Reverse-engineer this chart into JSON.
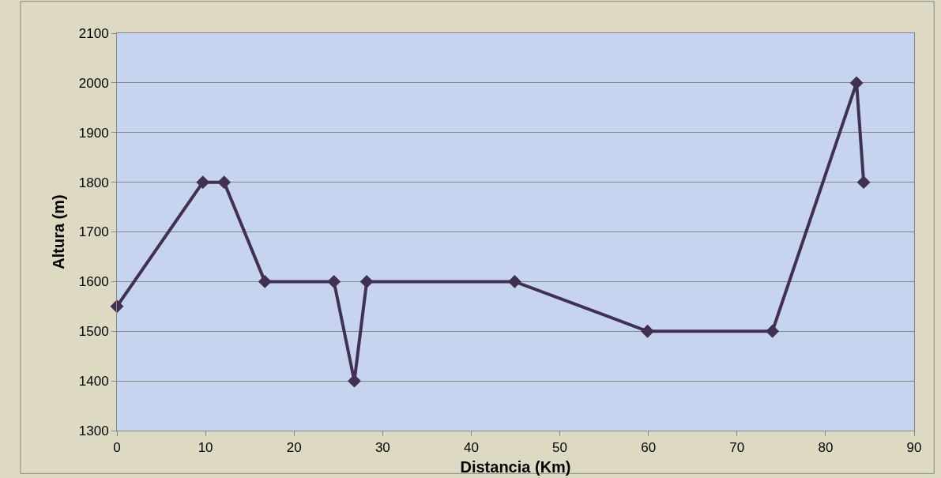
{
  "chart_data": {
    "type": "line",
    "xlabel": "Distancia (Km)",
    "ylabel": "Altura (m)",
    "x": [
      0,
      9.7,
      12.1,
      16.7,
      24.5,
      26.8,
      28.2,
      44.9,
      59.9,
      74.0,
      83.5,
      84.3
    ],
    "series": [
      {
        "color": "#403152",
        "values": [
          1550,
          1800,
          1800,
          1600,
          1600,
          1400,
          1600,
          1600,
          1500,
          1500,
          2000,
          1800
        ]
      }
    ],
    "xlim": [
      0,
      90
    ],
    "xticks": [
      0,
      10,
      20,
      30,
      40,
      50,
      60,
      70,
      80,
      90
    ],
    "ylim": [
      1300,
      2100
    ],
    "yticks": [
      1300,
      1400,
      1500,
      1600,
      1700,
      1800,
      1900,
      2000,
      2100
    ],
    "grid": "y",
    "marker": "diamond",
    "line_style": "solid"
  }
}
